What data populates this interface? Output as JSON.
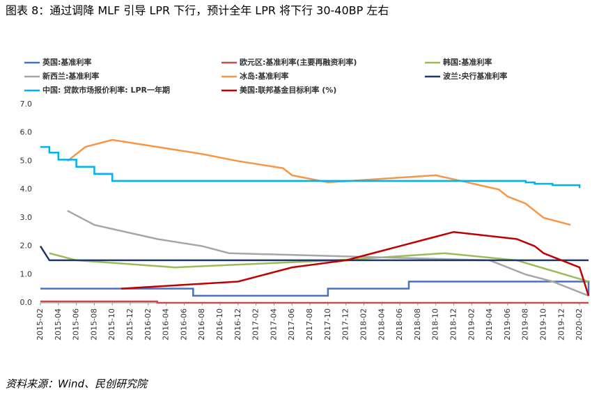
{
  "chart_data": {
    "type": "line",
    "title": "图表 8：通过调降 MLF 引导 LPR 下行，预计全年 LPR 将下行 30-40BP 左右",
    "source": "资料来源：Wind、民创研究院",
    "xlim": [
      "2015-02",
      "2020-03"
    ],
    "xticks": [
      "2015-02",
      "2015-04",
      "2015-06",
      "2015-08",
      "2015-10",
      "2015-12",
      "2016-02",
      "2016-04",
      "2016-06",
      "2016-08",
      "2016-10",
      "2016-12",
      "2017-02",
      "2017-04",
      "2017-06",
      "2017-08",
      "2017-10",
      "2017-12",
      "2018-02",
      "2018-04",
      "2018-06",
      "2018-08",
      "2018-10",
      "2018-12",
      "2019-02",
      "2019-04",
      "2019-06",
      "2019-08",
      "2019-10",
      "2019-12",
      "2020-02"
    ],
    "ylim": [
      0,
      7
    ],
    "yticks": [
      {
        "value": 0,
        "label": "0.0"
      },
      {
        "value": 1,
        "label": "1.0"
      },
      {
        "value": 2,
        "label": "2.0"
      },
      {
        "value": 3,
        "label": "3.0"
      },
      {
        "value": 4,
        "label": "4.0"
      },
      {
        "value": 5,
        "label": "5.0"
      },
      {
        "value": 6,
        "label": "6.0"
      },
      {
        "value": 7,
        "label": "7.0"
      }
    ],
    "series": [
      {
        "name": "英国:基准利率",
        "color": "#4472c4",
        "step": true,
        "x": [
          "2015-02",
          "2016-07",
          "2017-10",
          "2018-07",
          "2020-02",
          "2020-03"
        ],
        "values": [
          0.5,
          0.25,
          0.5,
          0.75,
          0.75,
          0.25
        ]
      },
      {
        "name": "欧元区:基准利率(主要再融资利率)",
        "color": "#c0504d",
        "step": true,
        "x": [
          "2015-02",
          "2016-03",
          "2020-03"
        ],
        "values": [
          0.05,
          0,
          0
        ]
      },
      {
        "name": "韩国:基准利率",
        "color": "#9bbb59",
        "step": false,
        "x": [
          "2015-03",
          "2015-06",
          "2016-05",
          "2017-11",
          "2018-11",
          "2019-07",
          "2020-03"
        ],
        "values": [
          1.75,
          1.5,
          1.25,
          1.5,
          1.75,
          1.5,
          0.75
        ]
      },
      {
        "name": "新西兰:基准利率",
        "color": "#a6a6a6",
        "step": false,
        "x": [
          "2015-05",
          "2015-08",
          "2016-03",
          "2016-08",
          "2016-11",
          "2019-04",
          "2019-08",
          "2019-11",
          "2020-03"
        ],
        "values": [
          3.25,
          2.75,
          2.25,
          2.0,
          1.75,
          1.5,
          1.0,
          0.75,
          0.25
        ]
      },
      {
        "name": "冰岛:基准利率",
        "color": "#f79646",
        "step": false,
        "x": [
          "2015-05",
          "2015-07",
          "2015-10",
          "2016-08",
          "2016-12",
          "2017-05",
          "2017-06",
          "2017-10",
          "2018-10",
          "2019-05",
          "2019-06",
          "2019-08",
          "2019-10",
          "2020-01"
        ],
        "values": [
          5.0,
          5.5,
          5.75,
          5.25,
          5.0,
          4.75,
          4.5,
          4.25,
          4.5,
          4.0,
          3.75,
          3.5,
          3.0,
          2.75
        ]
      },
      {
        "name": "波兰:央行基准利率",
        "color": "#1f3864",
        "step": false,
        "x": [
          "2015-02",
          "2015-03",
          "2020-03"
        ],
        "values": [
          2.0,
          1.5,
          1.5
        ]
      },
      {
        "name": "中国: 贷款市场报价利率: LPR一年期",
        "color": "#00b0f0",
        "step": true,
        "x": [
          "2015-02",
          "2015-03",
          "2015-04",
          "2015-06",
          "2015-08",
          "2015-10",
          "2019-08",
          "2019-09",
          "2019-11",
          "2020-02"
        ],
        "values": [
          5.5,
          5.3,
          5.05,
          4.8,
          4.55,
          4.3,
          4.25,
          4.2,
          4.15,
          4.05
        ]
      },
      {
        "name": "美国:联邦基金目标利率 (%)",
        "color": "#c00000",
        "step": false,
        "x": [
          "2015-11",
          "2016-12",
          "2017-03",
          "2017-06",
          "2017-12",
          "2018-03",
          "2018-06",
          "2018-09",
          "2018-12",
          "2019-07",
          "2019-09",
          "2019-10",
          "2020-02",
          "2020-03"
        ],
        "values": [
          0.5,
          0.75,
          1.0,
          1.25,
          1.5,
          1.75,
          2.0,
          2.25,
          2.5,
          2.25,
          2.0,
          1.75,
          1.25,
          0.25
        ]
      }
    ]
  }
}
